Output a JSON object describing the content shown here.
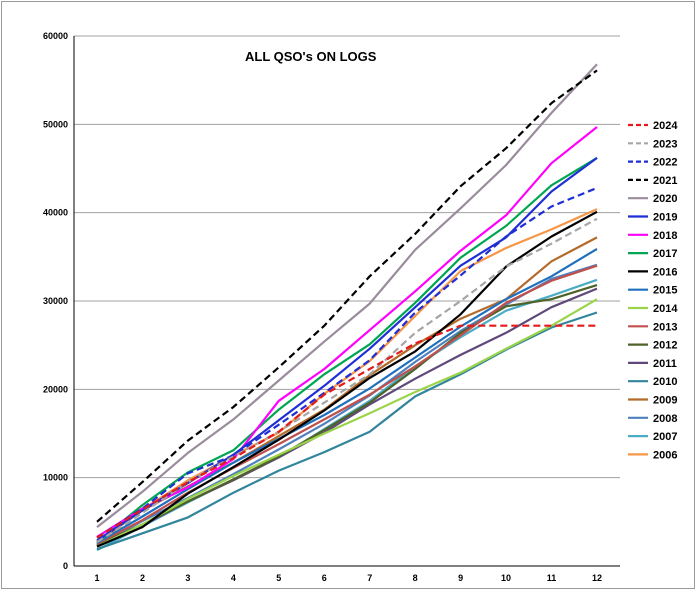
{
  "chart_data": {
    "type": "line",
    "title": "ALL QSO's ON LOGS",
    "xlabel": "",
    "ylabel": "",
    "x": [
      1,
      2,
      3,
      4,
      5,
      6,
      7,
      8,
      9,
      10,
      11,
      12
    ],
    "x_tick_labels": [
      "1",
      "2",
      "3",
      "4",
      "5",
      "6",
      "7",
      "8",
      "9",
      "10",
      "11",
      "12"
    ],
    "y_tick_labels": [
      "0",
      "10000",
      "20000",
      "30000",
      "40000",
      "50000",
      "60000"
    ],
    "ylim": [
      0,
      60000
    ],
    "grid": "horizontal",
    "legend_position": "right",
    "series": [
      {
        "name": "2024",
        "color": "#e41a1c",
        "dashed": true,
        "values": [
          3200,
          6400,
          9500,
          12200,
          15200,
          19400,
          22300,
          25200,
          27200,
          27200,
          27200,
          27200
        ]
      },
      {
        "name": "2023",
        "color": "#a6a6a6",
        "dashed": true,
        "values": [
          2700,
          6000,
          9500,
          12400,
          15200,
          18500,
          21700,
          26400,
          30000,
          33900,
          36500,
          39300
        ]
      },
      {
        "name": "2022",
        "color": "#1f2fd6",
        "dashed": true,
        "values": [
          3200,
          6500,
          10500,
          12500,
          16000,
          19600,
          23300,
          28700,
          32900,
          37300,
          40700,
          42800
        ]
      },
      {
        "name": "2021",
        "color": "#000000",
        "dashed": true,
        "values": [
          5000,
          9500,
          14200,
          18000,
          22500,
          27200,
          32800,
          37600,
          43000,
          47300,
          52400,
          56100
        ]
      },
      {
        "name": "2020",
        "color": "#9a8c9c",
        "dashed": false,
        "values": [
          4400,
          8400,
          12800,
          16600,
          21000,
          25400,
          29700,
          35800,
          40500,
          45400,
          51300,
          56800
        ]
      },
      {
        "name": "2019",
        "color": "#1f2fd6",
        "dashed": false,
        "values": [
          2900,
          6300,
          9400,
          12600,
          16500,
          20400,
          24600,
          29300,
          34000,
          37200,
          42400,
          46200
        ]
      },
      {
        "name": "2018",
        "color": "#ff00ff",
        "dashed": false,
        "values": [
          3300,
          6500,
          8900,
          12100,
          18700,
          22300,
          26700,
          31100,
          35700,
          39700,
          45600,
          49700
        ]
      },
      {
        "name": "2017",
        "color": "#00a651",
        "dashed": false,
        "values": [
          2700,
          6900,
          10600,
          13100,
          17700,
          21700,
          25100,
          29800,
          34900,
          38500,
          43100,
          46200
        ]
      },
      {
        "name": "2016",
        "color": "#000000",
        "dashed": false,
        "values": [
          2200,
          4400,
          8200,
          11200,
          14300,
          17600,
          21300,
          24300,
          28500,
          33900,
          37300,
          40100
        ]
      },
      {
        "name": "2015",
        "color": "#1f6fbf",
        "dashed": false,
        "values": [
          2600,
          5600,
          8700,
          11700,
          14400,
          17100,
          20100,
          23600,
          27100,
          30200,
          32800,
          35900
        ]
      },
      {
        "name": "2014",
        "color": "#9bd44a",
        "dashed": false,
        "values": [
          2200,
          4700,
          7600,
          10200,
          12600,
          15000,
          17300,
          19700,
          21900,
          24600,
          27200,
          30200
        ]
      },
      {
        "name": "2013",
        "color": "#c0504d",
        "dashed": false,
        "values": [
          2500,
          5200,
          8300,
          11100,
          13800,
          16600,
          19400,
          22600,
          26100,
          29800,
          32300,
          34000
        ]
      },
      {
        "name": "2012",
        "color": "#4f6228",
        "dashed": false,
        "values": [
          2400,
          4700,
          7300,
          9800,
          12400,
          15400,
          18500,
          22300,
          26400,
          29400,
          30200,
          31800
        ]
      },
      {
        "name": "2011",
        "color": "#5f497a",
        "dashed": false,
        "values": [
          2300,
          4600,
          7300,
          9700,
          12300,
          15100,
          18300,
          21200,
          23900,
          26400,
          29300,
          31400
        ]
      },
      {
        "name": "2010",
        "color": "#31859c",
        "dashed": false,
        "values": [
          1900,
          3700,
          5500,
          8300,
          10800,
          12900,
          15200,
          19200,
          21700,
          24500,
          27000,
          28700
        ]
      },
      {
        "name": "2009",
        "color": "#b46a2a",
        "dashed": false,
        "values": [
          2700,
          6300,
          9000,
          11700,
          14700,
          17700,
          21600,
          25000,
          28000,
          30200,
          34500,
          37200
        ]
      },
      {
        "name": "2008",
        "color": "#4f81bd",
        "dashed": false,
        "values": [
          2300,
          5100,
          7700,
          10400,
          13200,
          16100,
          19300,
          23100,
          26600,
          29600,
          32500,
          34100
        ]
      },
      {
        "name": "2007",
        "color": "#4bacc6",
        "dashed": false,
        "values": [
          1800,
          4500,
          7200,
          9800,
          12300,
          15500,
          18700,
          22600,
          25900,
          28900,
          30600,
          32400
        ]
      },
      {
        "name": "2006",
        "color": "#f79646",
        "dashed": false,
        "values": [
          2800,
          6400,
          9700,
          12500,
          15100,
          19500,
          23200,
          28300,
          33400,
          36000,
          38100,
          40400
        ]
      }
    ]
  }
}
